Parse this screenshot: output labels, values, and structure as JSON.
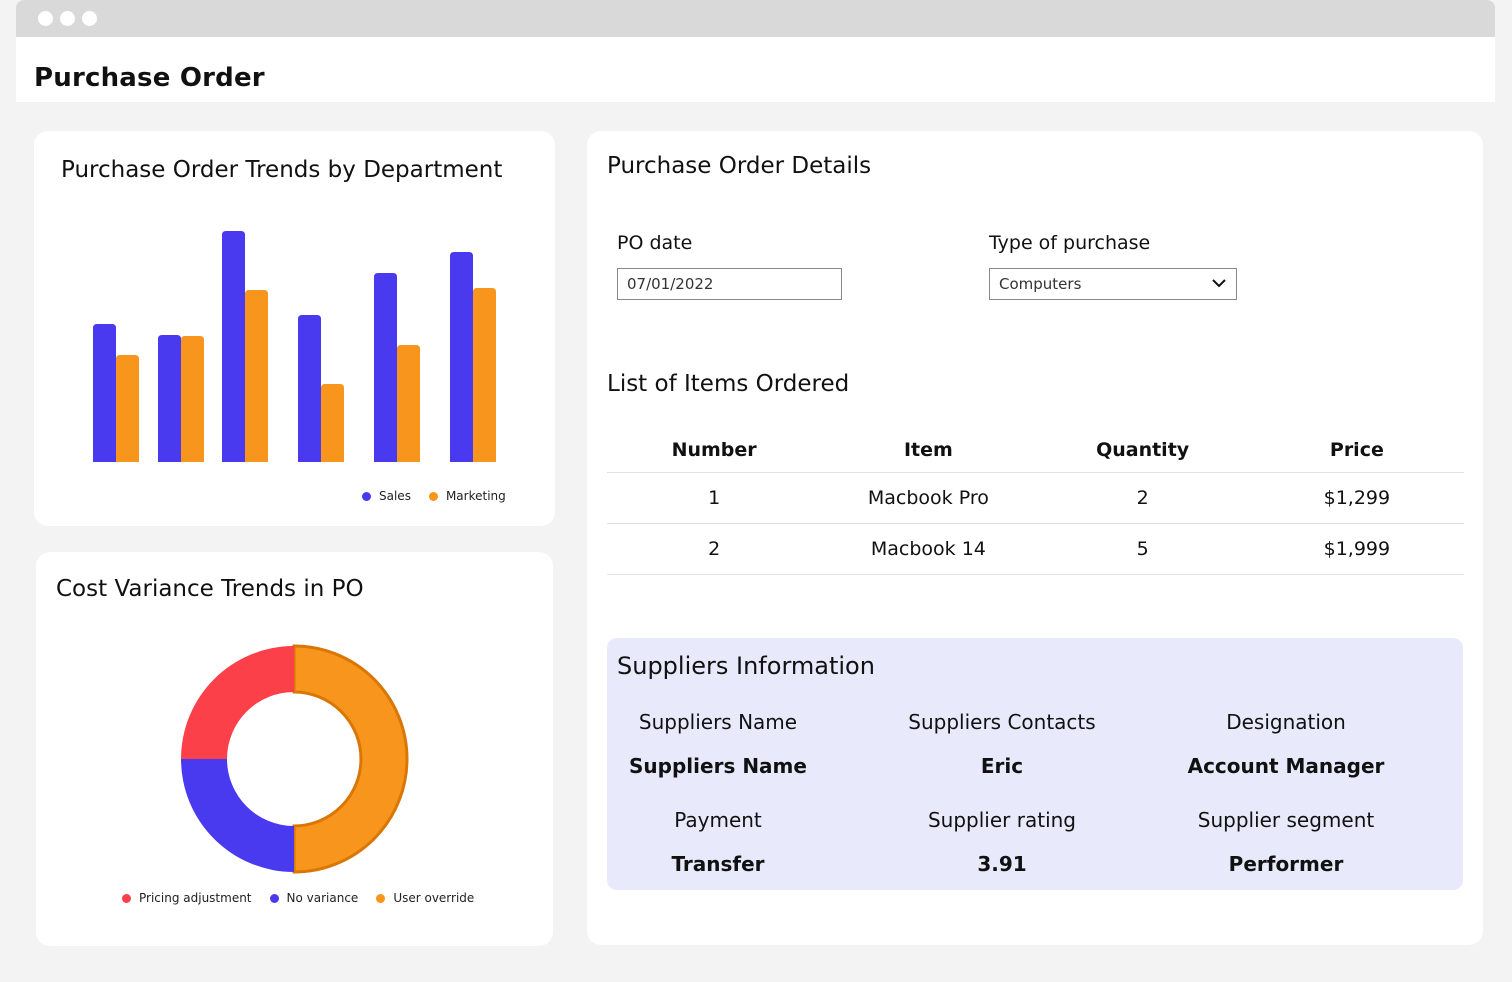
{
  "window": {
    "title": "Purchase Order"
  },
  "colors": {
    "sales": "#4a3aef",
    "marketing": "#f7951d",
    "pricing_adjustment": "#fc4049",
    "no_variance": "#4a3aef",
    "user_override": "#f7951d",
    "suppliers_bg": "#e8e9fb"
  },
  "trends_card": {
    "title": "Purchase Order Trends by Department",
    "legend": [
      "Sales",
      "Marketing"
    ]
  },
  "variance_card": {
    "title": "Cost Variance Trends in PO",
    "legend": [
      "Pricing adjustment",
      "No variance",
      "User override"
    ]
  },
  "chart_data": [
    {
      "type": "bar",
      "categories": [
        "",
        "",
        "",
        "",
        "",
        ""
      ],
      "series": [
        {
          "name": "Sales",
          "values": [
            138,
            127,
            231,
            147,
            189,
            210
          ]
        },
        {
          "name": "Marketing",
          "values": [
            107,
            126,
            172,
            78,
            117,
            174
          ]
        }
      ],
      "ylim": [
        0,
        240
      ],
      "grid": false,
      "legend_position": "bottom-right"
    },
    {
      "type": "pie",
      "donut": true,
      "labels": [
        "User override",
        "No variance",
        "Pricing adjustment"
      ],
      "values": [
        50,
        25,
        25
      ],
      "legend_position": "bottom"
    }
  ],
  "details": {
    "title": "Purchase Order Details",
    "po_date_label": "PO date",
    "po_date_value": "07/01/2022",
    "type_label": "Type of purchase",
    "type_value": "Computers",
    "items_title": "List of Items Ordered",
    "columns": [
      "Number",
      "Item",
      "Quantity",
      "Price"
    ],
    "rows": [
      [
        "1",
        "Macbook Pro",
        "2",
        "$1,299"
      ],
      [
        "2",
        "Macbook 14",
        "5",
        "$1,999"
      ]
    ]
  },
  "suppliers": {
    "title": "Suppliers Information",
    "fields": [
      {
        "label": "Suppliers Name",
        "value": "Suppliers Name"
      },
      {
        "label": "Suppliers Contacts",
        "value": "Eric"
      },
      {
        "label": "Designation",
        "value": "Account Manager"
      },
      {
        "label": "Payment",
        "value": "Transfer"
      },
      {
        "label": "Supplier rating",
        "value": "3.91"
      },
      {
        "label": "Supplier segment",
        "value": "Performer"
      }
    ]
  }
}
